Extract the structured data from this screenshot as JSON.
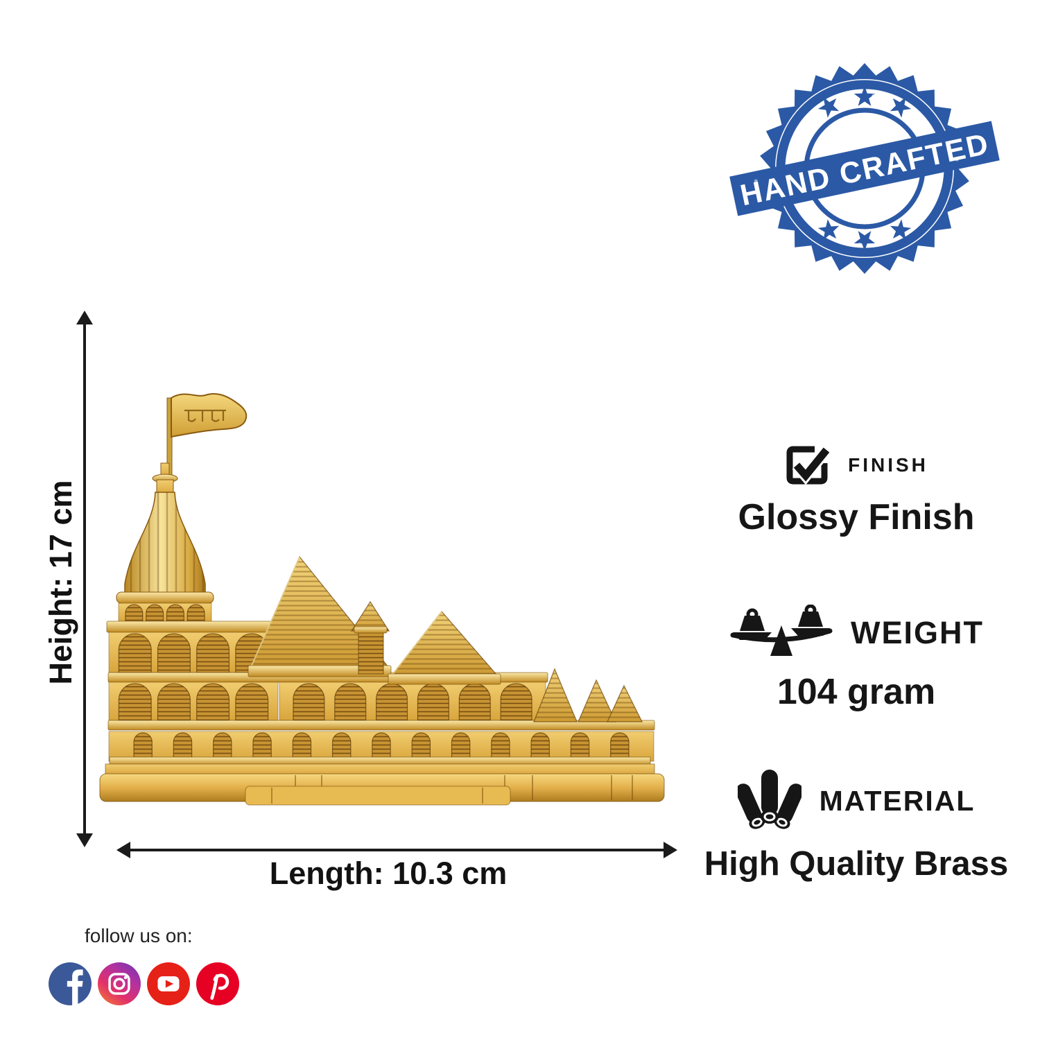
{
  "stamp": {
    "text": "HAND CRAFTED",
    "color": "#2b59a5"
  },
  "temple": {
    "flag_text": "श्रीराम",
    "gold_color": "#e7b94b"
  },
  "dimensions": {
    "height_label": "Height: 17 cm",
    "length_label": "Length: 10.3 cm"
  },
  "specs": [
    {
      "icon": "checkbox-check-icon",
      "label": "FINISH",
      "value": "Glossy Finish"
    },
    {
      "icon": "balance-scale-icon",
      "label": "WEIGHT",
      "value": "104 gram"
    },
    {
      "icon": "metal-rods-icon",
      "label": "MATERIAL",
      "value": "High Quality Brass"
    }
  ],
  "footer": {
    "follow_label": "follow us on:",
    "social": [
      {
        "name": "facebook",
        "color": "#3b5998"
      },
      {
        "name": "instagram",
        "color": "#dd2a7b"
      },
      {
        "name": "youtube",
        "color": "#e62117"
      },
      {
        "name": "pinterest",
        "color": "#e60023"
      }
    ]
  }
}
